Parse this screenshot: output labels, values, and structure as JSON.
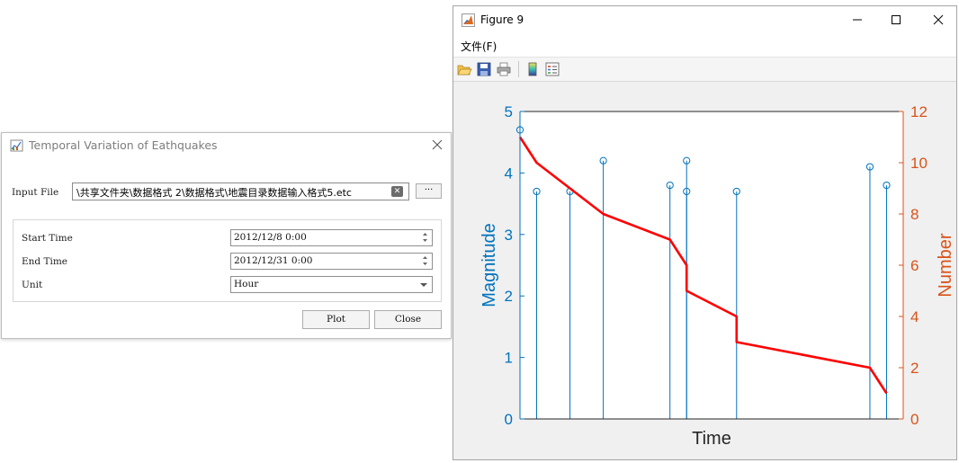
{
  "dialog": {
    "title": "Temporal Variation of Eathquakes",
    "input_file_label": "Input File",
    "input_file_value": "\\共享文件夹\\数据格式 2\\数据格式\\地震目录数据输入格式5.etc",
    "browse_label": "···",
    "start_time_label": "Start Time",
    "start_time_value": "2012/12/8 0:00",
    "end_time_label": "End Time",
    "end_time_value": "2012/12/31 0:00",
    "unit_label": "Unit",
    "unit_value": "Hour",
    "plot_button": "Plot",
    "close_button": "Close"
  },
  "figure": {
    "window_title": "Figure 9",
    "menu_file": "文件(F)",
    "toolbar": [
      "open-icon",
      "save-icon",
      "print-icon",
      "colorbar-icon",
      "legend-icon"
    ]
  },
  "chart_data": {
    "type": "stem + line (dual y-axis)",
    "xlabel": "Time",
    "ylabel_left": "Magnitude",
    "ylabel_right": "Number",
    "xlim": [
      0,
      23
    ],
    "ylim_left": [
      0,
      5
    ],
    "ylim_right": [
      0,
      12
    ],
    "yticks_left": [
      "0",
      "1",
      "2",
      "3",
      "4",
      "5"
    ],
    "yticks_right": [
      "0",
      "2",
      "4",
      "6",
      "8",
      "10",
      "12"
    ],
    "colors": {
      "left_axis": "#0072BD",
      "right_axis": "#D95319",
      "line": "#FF0000"
    },
    "series": [
      {
        "name": "Magnitude",
        "type": "stem",
        "x": [
          0.0,
          1.0,
          3.0,
          5.0,
          9.0,
          10.0,
          10.0,
          13.0,
          21.0,
          22.0
        ],
        "values": [
          4.7,
          3.7,
          3.7,
          4.2,
          3.8,
          3.7,
          4.2,
          3.7,
          4.1,
          3.8
        ]
      },
      {
        "name": "Number",
        "type": "line",
        "x": [
          0.0,
          1.0,
          3.0,
          5.0,
          9.0,
          10.0,
          10.0,
          13.0,
          13.0,
          21.0,
          22.0
        ],
        "values": [
          11,
          10,
          9,
          8,
          7,
          6,
          5,
          4,
          3,
          2,
          1
        ]
      }
    ]
  }
}
